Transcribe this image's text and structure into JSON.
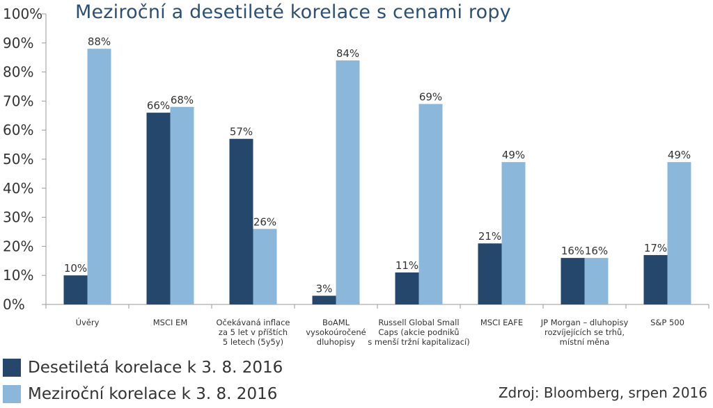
{
  "colors": {
    "dark": "#24476b",
    "light": "#8bb8da",
    "title": "#2d4f73",
    "text": "#333333",
    "axis": "#9a9a9a"
  },
  "chart_data": {
    "type": "bar",
    "title": "Meziroční a desetileté korelace s cenami ropy",
    "categories": [
      [
        "Úvěry"
      ],
      [
        "MSCI EM"
      ],
      [
        "Očekávaná inflace",
        "za 5 let v příštích",
        "5 letech (5y5y)"
      ],
      [
        "BoAML",
        "vysokoúročené",
        "dluhopisy"
      ],
      [
        "Russell Global Small",
        "Caps (akcie podniků",
        "s menší tržní kapitalizací)"
      ],
      [
        "MSCI EAFE"
      ],
      [
        "JP Morgan – dluhopisy",
        "rozvíjejících se trhů,",
        "místní měna"
      ],
      [
        "S&P 500"
      ]
    ],
    "series": [
      {
        "name": "Desetiletá korelace k 3. 8. 2016",
        "values": [
          10,
          66,
          57,
          3,
          11,
          21,
          16,
          17
        ]
      },
      {
        "name": "Meziroční korelace k 3. 8. 2016",
        "values": [
          88,
          68,
          26,
          84,
          69,
          49,
          16,
          49
        ]
      }
    ],
    "ylim": [
      0,
      100
    ],
    "yticks": [
      0,
      10,
      20,
      30,
      40,
      50,
      60,
      70,
      80,
      90,
      100
    ],
    "value_suffix": "%",
    "grid": false,
    "legend_position": "bottom-left"
  },
  "source_note": "Zdroj: Bloomberg, srpen 2016"
}
